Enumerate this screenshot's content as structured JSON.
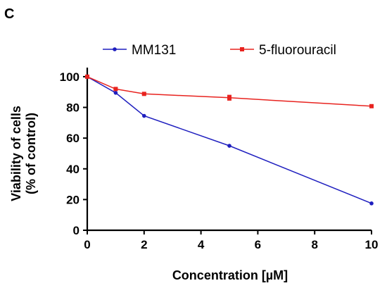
{
  "panel_label": "C",
  "colors": {
    "MM131": "#1f1fbf",
    "5-fluorouracil": "#e8231f",
    "axis": "#000000"
  },
  "chart_data": {
    "type": "line",
    "title": "",
    "xlabel": "Concentration [µM]",
    "ylabel_lines": [
      "Viability of cells",
      "(% of control)"
    ],
    "xlim": [
      0,
      10
    ],
    "ylim": [
      0,
      105
    ],
    "xticks": [
      0,
      2,
      4,
      6,
      8,
      10
    ],
    "yticks": [
      0,
      20,
      40,
      60,
      80,
      100
    ],
    "grid": false,
    "legend_position": "top",
    "series": [
      {
        "name": "MM131",
        "marker": "circle",
        "x": [
          0,
          1,
          2,
          5,
          10
        ],
        "y": [
          100,
          89.5,
          74.5,
          55,
          17.5
        ],
        "err": [
          0,
          0,
          0,
          0,
          0
        ]
      },
      {
        "name": "5-fluorouracil",
        "marker": "square",
        "x": [
          0,
          1,
          2,
          5,
          10
        ],
        "y": [
          100,
          92,
          88.8,
          86.3,
          80.8
        ],
        "err": [
          0,
          0.8,
          0.5,
          1.6,
          0.5
        ]
      }
    ]
  }
}
